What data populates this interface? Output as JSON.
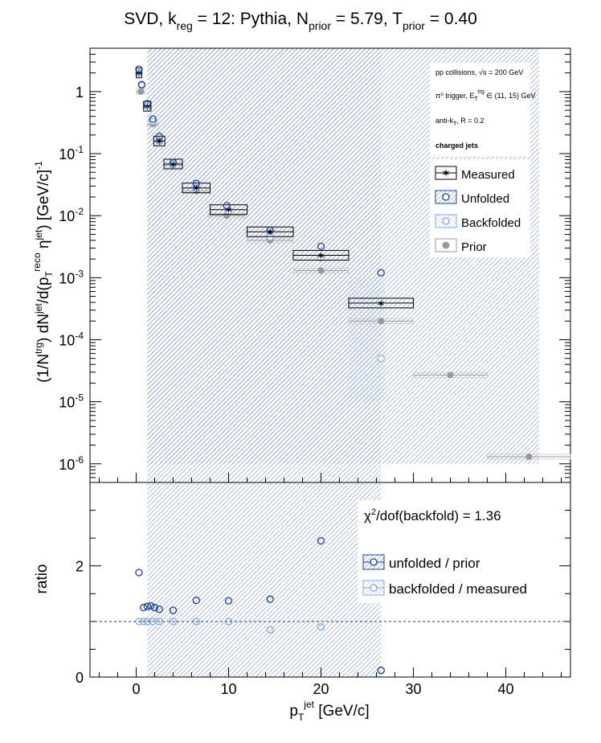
{
  "title": "SVD, k_reg = 12: Pythia, N_prior = 5.79, T_prior = 0.40",
  "colors": {
    "measured": "#000000",
    "unfolded": "#1c3f94",
    "backfolded": "#7fa6e3",
    "prior": "#999999",
    "hatch": "#8fa3cf"
  },
  "chart_data": [
    {
      "type": "scatter",
      "panel": "top",
      "ylabel": "(1/N^trg) dN^jet/d(p_T^reco,jet η^jet) [GeV/c]^-1",
      "xlabel": "",
      "xlim": [
        -5,
        47
      ],
      "ylim": [
        5e-07,
        5
      ],
      "yscale": "log",
      "ytick_labels": [
        "1",
        "10^-1",
        "10^-2",
        "10^-3",
        "10^-4",
        "10^-5",
        "10^-6"
      ],
      "annotations": [
        "pp collisions, √s = 200 GeV",
        "π^0 trigger, E_T^trg ∈ (11, 15) GeV",
        "anti-k_T, R = 0.2",
        "charged jets"
      ],
      "legend": [
        "Measured",
        "Unfolded",
        "Backfolded",
        "Prior"
      ],
      "legend_position": "top-right",
      "series": [
        {
          "name": "Measured",
          "x": [
            0.3,
            1.2,
            2.5,
            4.0,
            6.5,
            10.0,
            14.5,
            20.0,
            26.5
          ],
          "xerr": [
            0.3,
            0.4,
            0.6,
            1.0,
            1.5,
            2.0,
            2.5,
            3.0,
            3.5
          ],
          "y": [
            2.0,
            0.58,
            0.16,
            0.068,
            0.028,
            0.0125,
            0.0055,
            0.0023,
            0.00039
          ]
        },
        {
          "name": "Unfolded",
          "x": [
            0.3,
            0.6,
            1.2,
            1.8,
            2.5,
            4.0,
            6.5,
            9.8,
            14.5,
            20.0,
            26.5
          ],
          "y": [
            2.3,
            1.3,
            0.64,
            0.36,
            0.19,
            0.072,
            0.033,
            0.0145,
            0.0058,
            0.0032,
            0.0012
          ]
        },
        {
          "name": "Backfolded",
          "x": [
            0.3,
            0.6,
            1.2,
            1.8,
            2.5,
            4.0,
            6.5,
            10.0,
            14.5,
            20.0,
            26.5
          ],
          "y": [
            2.0,
            1.25,
            0.58,
            0.33,
            0.16,
            0.068,
            0.028,
            0.012,
            0.0045,
            0.0021,
            5e-05
          ]
        },
        {
          "name": "Prior",
          "x": [
            0.5,
            1.8,
            4.0,
            6.5,
            9.8,
            14.5,
            20.0,
            26.5,
            34.0,
            42.5
          ],
          "xerr": [
            0.5,
            0.6,
            1.0,
            1.5,
            2.0,
            2.5,
            3.0,
            3.5,
            4.0,
            4.5
          ],
          "y": [
            1.0,
            0.3,
            0.065,
            0.025,
            0.01,
            0.004,
            0.0013,
            0.0002,
            2.7e-05,
            1.3e-06
          ]
        }
      ]
    },
    {
      "type": "scatter",
      "panel": "bottom",
      "xlabel": "p_T^jet [GeV/c]",
      "ylabel": "ratio",
      "xlim": [
        -5,
        47
      ],
      "ylim": [
        0,
        3.5
      ],
      "xtick_labels": [
        "0",
        "10",
        "20",
        "30",
        "40"
      ],
      "ytick_labels": [
        "0",
        "2"
      ],
      "reference_line": 1,
      "annotation": "χ^2/dof(backfold) = 1.36",
      "legend": [
        "unfolded / prior",
        "backfolded / measured"
      ],
      "series": [
        {
          "name": "unfolded / prior",
          "x": [
            0.3,
            0.8,
            1.2,
            1.6,
            2.0,
            2.5,
            4.0,
            6.5,
            10.0,
            14.5,
            20.0,
            26.5
          ],
          "y": [
            1.88,
            1.25,
            1.27,
            1.28,
            1.25,
            1.22,
            1.2,
            1.38,
            1.37,
            1.4,
            2.45,
            0.12
          ]
        },
        {
          "name": "backfolded / measured",
          "x": [
            0.3,
            0.8,
            1.2,
            1.8,
            2.5,
            4.0,
            6.5,
            10.0,
            14.5,
            20.0,
            26.5
          ],
          "y": [
            1.0,
            1.0,
            1.0,
            1.0,
            1.0,
            1.0,
            1.0,
            1.0,
            0.85,
            0.9,
            0.12
          ]
        }
      ]
    }
  ]
}
